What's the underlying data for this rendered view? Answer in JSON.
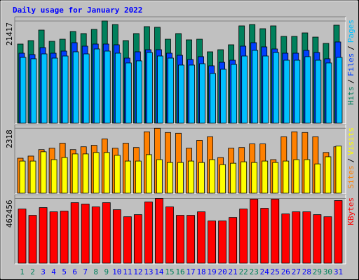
{
  "chart_data": [
    {
      "type": "bar",
      "title": "Daily usage for January 2022",
      "title_color": "#0000FF",
      "categories": [
        "1",
        "2",
        "3",
        "4",
        "5",
        "6",
        "7",
        "8",
        "9",
        "10",
        "11",
        "12",
        "13",
        "14",
        "15",
        "16",
        "17",
        "18",
        "19",
        "20",
        "21",
        "22",
        "23",
        "24",
        "25",
        "26",
        "27",
        "28",
        "29",
        "30",
        "31"
      ],
      "category_colors": [
        "#00805C",
        "#00805C",
        "#0000FF",
        "#0000FF",
        "#0000FF",
        "#0000FF",
        "#0000FF",
        "#00805C",
        "#00805C",
        "#0000FF",
        "#0000FF",
        "#0000FF",
        "#0000FF",
        "#0000FF",
        "#00805C",
        "#00805C",
        "#0000FF",
        "#0000FF",
        "#0000FF",
        "#0000FF",
        "#0000FF",
        "#00805C",
        "#00805C",
        "#0000FF",
        "#0000FF",
        "#0000FF",
        "#0000FF",
        "#0000FF",
        "#00805C",
        "#00805C",
        "#0000FF"
      ],
      "legend_separator": "/",
      "ylim": [
        0,
        22000
      ],
      "yticks": [
        21417
      ],
      "grid": true,
      "series": [
        {
          "name": "Hits",
          "color": "#00805C",
          "values": [
            16580,
            17310,
            19510,
            17160,
            17600,
            19220,
            18780,
            19660,
            21417,
            20680,
            17310,
            18780,
            20240,
            20100,
            17600,
            18780,
            17460,
            17600,
            14960,
            15400,
            16430,
            20390,
            20680,
            19800,
            20390,
            18190,
            18190,
            18920,
            18040,
            16720,
            20540
          ]
        },
        {
          "name": "Files",
          "color": "#0040FF",
          "values": [
            14670,
            14380,
            15840,
            14670,
            15110,
            16870,
            16140,
            16580,
            16580,
            16430,
            13640,
            14960,
            15400,
            15400,
            14670,
            14230,
            13350,
            13940,
            12030,
            12760,
            13200,
            16140,
            16870,
            15990,
            15550,
            14670,
            14670,
            15260,
            14820,
            13500,
            17020
          ]
        },
        {
          "name": "Pages",
          "color": "#00C0FF",
          "values": [
            13790,
            13500,
            14520,
            13640,
            14080,
            14960,
            14520,
            15550,
            15110,
            14670,
            12620,
            13060,
            14820,
            14080,
            13640,
            12180,
            12180,
            12470,
            10420,
            11300,
            12320,
            14080,
            15260,
            14080,
            14820,
            13200,
            13200,
            13940,
            13200,
            12620,
            13790
          ]
        }
      ]
    },
    {
      "type": "bar",
      "legend_separator": "/",
      "ylim": [
        0,
        2400
      ],
      "yticks": [
        2318
      ],
      "grid": true,
      "series": [
        {
          "name": "Sites",
          "color": "#FF8000",
          "values": [
            1250,
            1326,
            1556,
            1607,
            1785,
            1556,
            1658,
            1709,
            1938,
            1607,
            1785,
            1632,
            2193,
            2318,
            2168,
            2142,
            1607,
            1887,
            2015,
            1275,
            1607,
            1632,
            1760,
            1760,
            1199,
            2015,
            2193,
            2168,
            2015,
            1454,
            1658
          ]
        },
        {
          "name": "Visits",
          "color": "#FFFF00",
          "values": [
            1148,
            1148,
            1479,
            1199,
            1275,
            1403,
            1403,
            1454,
            1454,
            1352,
            1148,
            1148,
            1377,
            1199,
            1097,
            1097,
            1148,
            1097,
            1199,
            1020,
            1071,
            1122,
            1097,
            1148,
            1097,
            1148,
            1199,
            1199,
            1046,
            1301,
            1683
          ]
        }
      ]
    },
    {
      "type": "bar",
      "ylim": [
        0,
        480000
      ],
      "yticks": [
        462456
      ],
      "grid": true,
      "series": [
        {
          "name": "KBytes",
          "color": "#FF0000",
          "values": [
            387080,
            341840,
            397130,
            366970,
            372000,
            432320,
            422270,
            402160,
            432320,
            382050,
            331780,
            346860,
            437350,
            462456,
            402160,
            341840,
            341840,
            366970,
            301620,
            301620,
            326760,
            387080,
            457460,
            392110,
            457460,
            351890,
            366970,
            366970,
            346860,
            331780,
            447400
          ]
        }
      ]
    }
  ]
}
